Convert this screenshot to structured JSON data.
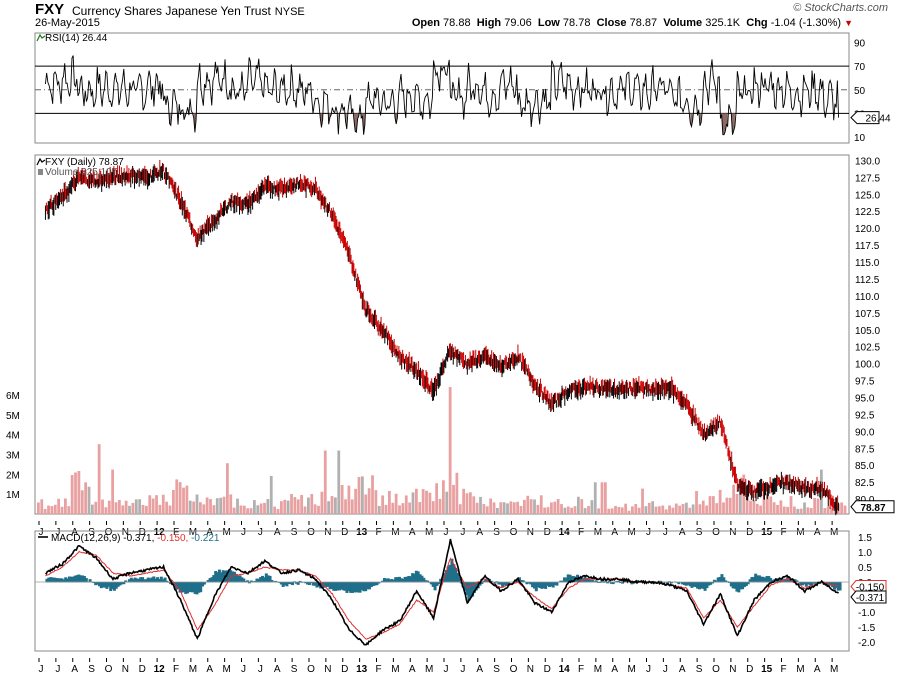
{
  "header": {
    "symbol": "FXY",
    "name": "Currency Shares Japanese Yen Trust",
    "exchange": "NYSE",
    "date": "26-May-2015",
    "brand": "© StockCharts.com",
    "open_label": "Open",
    "open": "78.88",
    "high_label": "High",
    "high": "79.06",
    "low_label": "Low",
    "low": "78.78",
    "close_label": "Close",
    "close": "78.87",
    "volume_label": "Volume",
    "volume": "325.1K",
    "chg_label": "Chg",
    "chg": "-1.04 (-1.30%)"
  },
  "colors": {
    "price_down": "#cc0000",
    "rsi_fill": "#8b6b64",
    "volume": "#e8a0a0",
    "macd_hist": "#1f6f8b",
    "signal": "#e03030"
  },
  "x_axis": {
    "month_labels": [
      "J",
      "J",
      "A",
      "S",
      "O",
      "N",
      "D",
      "12",
      "F",
      "M",
      "A",
      "M",
      "J",
      "J",
      "A",
      "S",
      "O",
      "N",
      "D",
      "13",
      "F",
      "M",
      "A",
      "M",
      "J",
      "J",
      "A",
      "S",
      "O",
      "N",
      "D",
      "14",
      "F",
      "M",
      "A",
      "M",
      "J",
      "J",
      "A",
      "S",
      "O",
      "N",
      "D",
      "15",
      "F",
      "M",
      "A",
      "M"
    ]
  },
  "chart_data": [
    {
      "type": "line",
      "title": "RSI(14) 26.44",
      "series": [
        {
          "name": "RSI(14)",
          "current": 26.44
        }
      ],
      "y_ticks": [
        10,
        30,
        50,
        70,
        90
      ],
      "ylim": [
        5,
        98
      ],
      "reference_levels": [
        30,
        50,
        70
      ],
      "tag": "26.44"
    },
    {
      "type": "line",
      "title": "FXY (Daily) 78.87",
      "volume_label": "Volume 325,107",
      "x": [
        "2011-06",
        "2011-07",
        "2011-08",
        "2011-09",
        "2011-10",
        "2011-11",
        "2011-12",
        "2012-01",
        "2012-02",
        "2012-03",
        "2012-04",
        "2012-05",
        "2012-06",
        "2012-07",
        "2012-08",
        "2012-09",
        "2012-10",
        "2012-11",
        "2012-12",
        "2013-01",
        "2013-02",
        "2013-03",
        "2013-04",
        "2013-05",
        "2013-06",
        "2013-07",
        "2013-08",
        "2013-09",
        "2013-10",
        "2013-11",
        "2013-12",
        "2014-01",
        "2014-02",
        "2014-03",
        "2014-04",
        "2014-05",
        "2014-06",
        "2014-07",
        "2014-08",
        "2014-09",
        "2014-10",
        "2014-11",
        "2014-12",
        "2015-01",
        "2015-02",
        "2015-03",
        "2015-04",
        "2015-05"
      ],
      "series": [
        {
          "name": "FXY (Daily)",
          "values": [
            122.8,
            124.5,
            127.5,
            127.0,
            127.5,
            127.8,
            127.5,
            128.5,
            124.0,
            118.5,
            121.0,
            124.0,
            123.5,
            126.0,
            126.0,
            126.5,
            126.0,
            122.0,
            116.0,
            108.0,
            105.0,
            101.0,
            99.0,
            96.0,
            102.0,
            100.0,
            101.0,
            99.5,
            101.0,
            97.0,
            94.0,
            96.0,
            96.5,
            96.5,
            96.0,
            96.5,
            96.0,
            96.5,
            94.0,
            89.5,
            91.5,
            82.0,
            81.0,
            82.0,
            82.5,
            81.5,
            81.5,
            78.87
          ]
        }
      ],
      "volume_series": [
        0.6,
        0.7,
        1.9,
        1.1,
        0.7,
        0.7,
        0.9,
        0.8,
        1.4,
        0.8,
        0.7,
        0.8,
        0.7,
        0.6,
        0.6,
        0.8,
        0.9,
        1.0,
        1.2,
        1.7,
        1.0,
        0.8,
        1.0,
        1.3,
        2.0,
        1.0,
        0.7,
        0.6,
        0.6,
        0.8,
        0.8,
        0.7,
        0.7,
        0.5,
        0.5,
        0.4,
        0.5,
        0.5,
        0.6,
        0.9,
        1.0,
        1.6,
        0.8,
        0.8,
        0.7,
        0.6,
        0.7,
        0.6
      ],
      "price_ticks": [
        80,
        82.5,
        85,
        87.5,
        90,
        92.5,
        95,
        97.5,
        100,
        102.5,
        105,
        107.5,
        110,
        112.5,
        115,
        117.5,
        120,
        122.5,
        125,
        127.5,
        130
      ],
      "price_tick_labels": [
        "80.0",
        "82.5",
        "85.0",
        "87.5",
        "90.0",
        "92.5",
        "95.0",
        "97.5",
        "100.0",
        "102.5",
        "105.0",
        "107.5",
        "110.0",
        "112.5",
        "115.0",
        "117.5",
        "120.0",
        "122.5",
        "125.0",
        "127.5",
        "130.0"
      ],
      "ylim": [
        77.8,
        130.8
      ],
      "volume_tick_labels": [
        "1M",
        "2M",
        "3M",
        "4M",
        "5M",
        "6M"
      ],
      "last_price_tag": "78.87"
    },
    {
      "type": "line",
      "title": "MACD(12,26,9) -0.371, -0.150, -0.221",
      "macd_value": "-0.371",
      "signal_value": "-0.150",
      "hist_value": "-0.221",
      "macd": [
        0.3,
        0.6,
        1.2,
        0.8,
        0.1,
        0.3,
        0.4,
        0.5,
        -0.6,
        -1.9,
        -0.5,
        0.5,
        0.3,
        0.7,
        0.3,
        0.4,
        0.1,
        -0.6,
        -1.6,
        -2.1,
        -1.6,
        -1.3,
        -0.3,
        -1.2,
        1.4,
        -0.7,
        0.2,
        -0.3,
        0.1,
        -0.7,
        -1.0,
        0.0,
        0.2,
        0.1,
        0.1,
        0.0,
        0.0,
        -0.1,
        -0.3,
        -1.4,
        -0.4,
        -1.8,
        -0.6,
        0.0,
        0.2,
        -0.3,
        0.0,
        -0.37
      ],
      "signal": [
        0.2,
        0.5,
        1.0,
        0.9,
        0.3,
        0.2,
        0.3,
        0.4,
        -0.3,
        -1.6,
        -0.8,
        0.2,
        0.3,
        0.5,
        0.4,
        0.4,
        0.2,
        -0.4,
        -1.3,
        -1.9,
        -1.7,
        -1.4,
        -0.6,
        -1.0,
        0.8,
        -0.2,
        0.1,
        -0.2,
        0.0,
        -0.5,
        -0.9,
        -0.2,
        0.1,
        0.1,
        0.1,
        0.0,
        0.0,
        -0.1,
        -0.2,
        -1.2,
        -0.6,
        -1.5,
        -0.8,
        -0.1,
        0.1,
        -0.2,
        0.0,
        -0.15
      ],
      "y_ticks": [
        -2.0,
        -1.5,
        -1.0,
        -0.5,
        0.0,
        0.5,
        1.0,
        1.5
      ],
      "y_tick_labels": [
        "-2.0",
        "-1.5",
        "-1.0",
        "-0.5",
        "0.0",
        "0.5",
        "1.0",
        "1.5"
      ],
      "ylim": [
        -2.3,
        1.7
      ],
      "tags": [
        "-0.150",
        "-0.371"
      ]
    }
  ]
}
